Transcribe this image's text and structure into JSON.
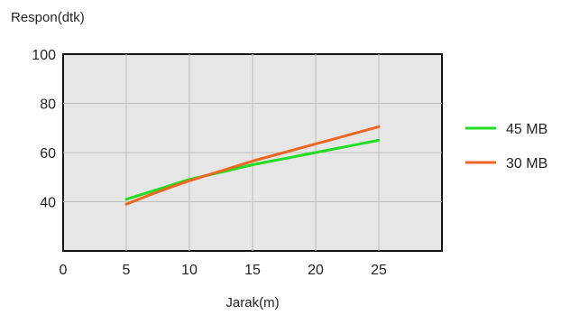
{
  "chart_data": {
    "type": "line",
    "title": "",
    "xlabel": "Jarak(m)",
    "ylabel": "Respon(dtk)",
    "xlim": [
      0,
      30
    ],
    "ylim": [
      20,
      100
    ],
    "x_ticks": [
      0,
      5,
      10,
      15,
      20,
      25
    ],
    "y_ticks": [
      40,
      60,
      80,
      100
    ],
    "grid": true,
    "legend_position": "right",
    "series": [
      {
        "name": "45 MB",
        "color": "#22dd22",
        "x": [
          5,
          7.5,
          10,
          12.5,
          15,
          17.5,
          20,
          22.5,
          25
        ],
        "y": [
          41,
          45,
          49,
          52,
          55,
          57.5,
          60,
          62.5,
          65
        ]
      },
      {
        "name": "30 MB",
        "color": "#ee6622",
        "x": [
          5,
          7.5,
          10,
          12.5,
          15,
          17.5,
          20,
          22.5,
          25
        ],
        "y": [
          39,
          44,
          48.5,
          52.5,
          56.5,
          60,
          63.5,
          67,
          70.5
        ]
      }
    ]
  }
}
